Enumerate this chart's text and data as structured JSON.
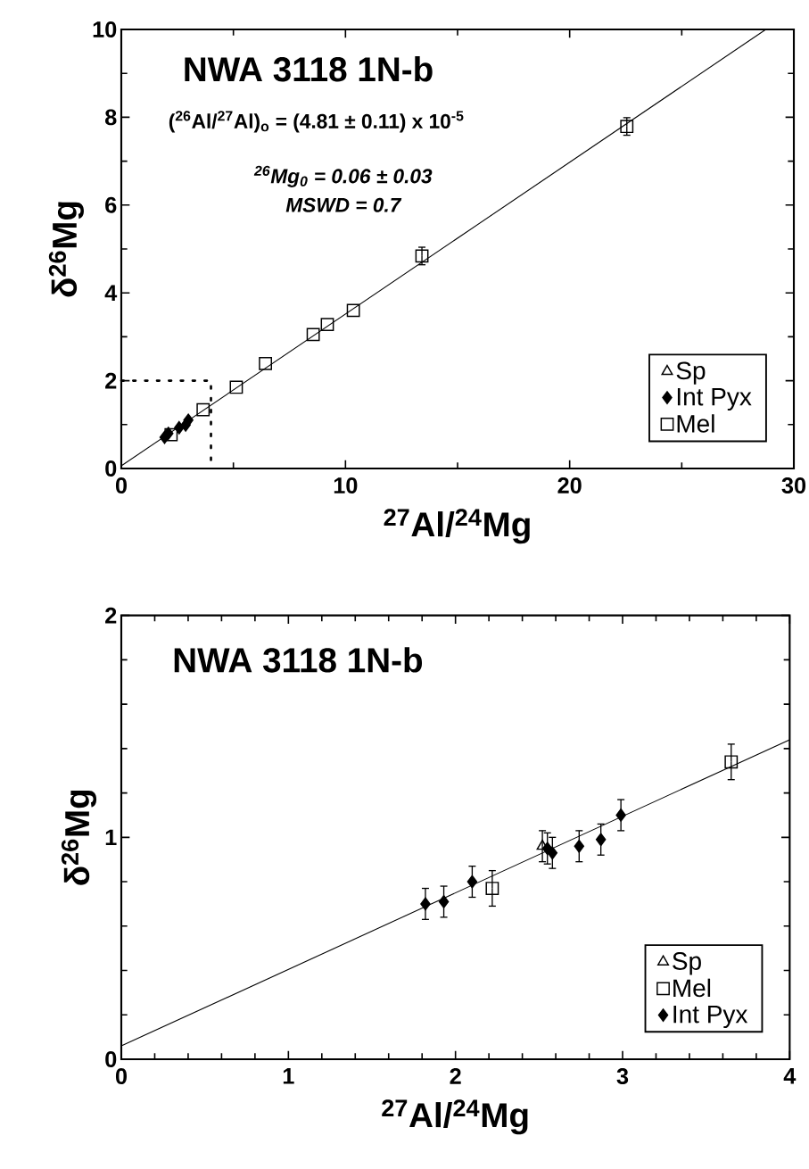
{
  "chart_data": [
    {
      "type": "scatter",
      "title": "NWA 3118 1N-b",
      "xlabel": "$^{27}$Al/$^{24}$Mg",
      "ylabel": "δ$^{26}$Mg",
      "annotations": [
        "($^{26}$Al/$^{27}$Al)$_{o}$ = (4.81 ± 0.11) x 10$^{-5}$",
        "$^{26}$Mg$_{0}$ = 0.06 ± 0.03",
        "MSWD = 0.7"
      ],
      "xlim": [
        0,
        30
      ],
      "ylim": [
        0,
        10
      ],
      "xticks": [
        0,
        10,
        20,
        30
      ],
      "yticks": [
        0,
        2,
        4,
        6,
        8,
        10
      ],
      "legend": "bottom right",
      "series": [
        {
          "type": "line",
          "color": "#000000",
          "line_style": "dotted",
          "x": [
            0,
            4,
            4
          ],
          "values": [
            2,
            2,
            0
          ]
        },
        {
          "type": "line",
          "color": "#000000",
          "line_style": "solid",
          "x": [
            0,
            28.75
          ],
          "values": [
            0.06,
            10
          ]
        },
        {
          "name": "Sp",
          "color": "#000000",
          "marker": "triangle",
          "x": [
            null
          ],
          "values": [
            null
          ]
        },
        {
          "name": "Int Pyx",
          "color": "#000000",
          "marker": "diamond",
          "x": [
            null,
            1.93,
            2.1,
            null,
            2.58,
            null,
            2.87,
            2.99
          ],
          "values": [
            null,
            0.71,
            0.8,
            null,
            0.93,
            null,
            0.99,
            1.1
          ]
        },
        {
          "name": "Mel",
          "color": "#000000",
          "marker": "square",
          "x": [
            2.22,
            3.65,
            5.13,
            6.43,
            8.56,
            9.19,
            10.35,
            13.41,
            22.55
          ],
          "values": [
            0.77,
            1.34,
            1.85,
            2.39,
            3.05,
            3.28,
            3.6,
            4.84,
            7.79
          ],
          "errors": [
            null,
            null,
            null,
            null,
            null,
            null,
            null,
            0.2,
            0.2
          ]
        }
      ]
    },
    {
      "type": "scatter",
      "title": "NWA 3118 1N-b",
      "xlabel": "$^{27}$Al/$^{24}$Mg",
      "ylabel": "δ$^{26}$Mg",
      "xlim": [
        0,
        4
      ],
      "ylim": [
        0,
        2
      ],
      "xticks": [
        0,
        1,
        2,
        3,
        4
      ],
      "yticks": [
        0,
        1,
        2
      ],
      "legend": "bottom right",
      "series": [
        {
          "type": "line",
          "color": "#000000",
          "line_style": "solid",
          "x": [
            0,
            4
          ],
          "values": [
            0.06,
            1.44
          ]
        },
        {
          "name": "Sp",
          "color": "#000000",
          "marker": "triangle",
          "x": [
            2.52
          ],
          "values": [
            0.96
          ],
          "errors": [
            0.07
          ]
        },
        {
          "name": "Mel",
          "color": "#000000",
          "marker": "square",
          "x": [
            2.22,
            3.65
          ],
          "values": [
            0.77,
            1.34
          ],
          "errors": [
            0.08,
            0.08
          ]
        },
        {
          "name": "Int Pyx",
          "color": "#000000",
          "marker": "diamond",
          "x": [
            1.82,
            1.93,
            2.1,
            2.55,
            2.58,
            2.74,
            2.87,
            2.99
          ],
          "values": [
            0.7,
            0.71,
            0.8,
            0.95,
            0.93,
            0.96,
            0.99,
            1.1
          ],
          "errors": [
            0.07,
            0.07,
            0.07,
            0.07,
            0.07,
            0.07,
            0.07,
            0.07
          ]
        }
      ]
    }
  ]
}
